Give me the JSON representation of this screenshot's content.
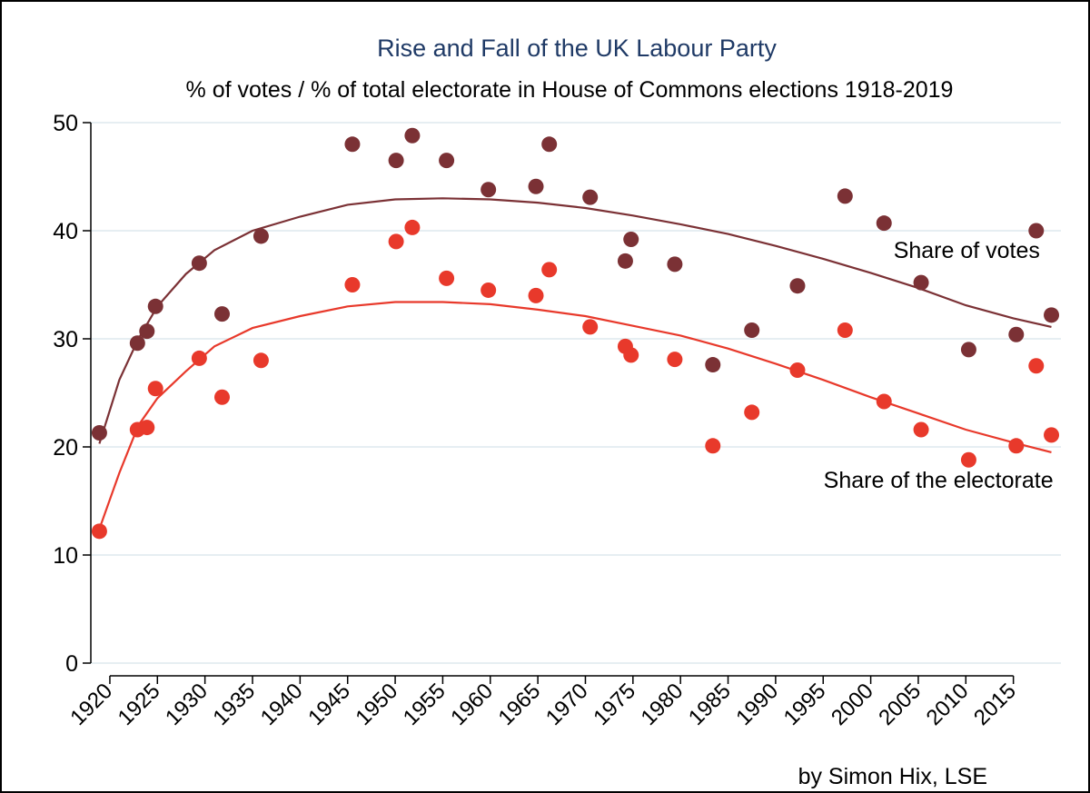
{
  "chart_data": {
    "type": "scatter",
    "title": "Rise and Fall of the UK Labour Party",
    "subtitle": "% of votes / % of total electorate in House of Commons elections 1918-2019",
    "credit": "by Simon Hix, LSE",
    "xlabel": "",
    "ylabel": "",
    "xlim": [
      1918,
      2020
    ],
    "ylim": [
      0,
      50
    ],
    "x_ticks": [
      1920,
      1925,
      1930,
      1935,
      1940,
      1945,
      1950,
      1955,
      1960,
      1965,
      1970,
      1975,
      1980,
      1985,
      1990,
      1995,
      2000,
      2005,
      2010,
      2015
    ],
    "y_ticks": [
      0,
      10,
      20,
      30,
      40,
      50
    ],
    "grid": true,
    "series": [
      {
        "name": "Share of votes",
        "color": "#7b3135",
        "points": [
          {
            "x": 1918.9,
            "y": 21.3
          },
          {
            "x": 1922.9,
            "y": 29.6
          },
          {
            "x": 1923.9,
            "y": 30.7
          },
          {
            "x": 1924.8,
            "y": 33.0
          },
          {
            "x": 1929.4,
            "y": 37.0
          },
          {
            "x": 1931.8,
            "y": 32.3
          },
          {
            "x": 1935.9,
            "y": 39.5
          },
          {
            "x": 1945.5,
            "y": 48.0
          },
          {
            "x": 1950.1,
            "y": 46.5
          },
          {
            "x": 1951.8,
            "y": 48.8
          },
          {
            "x": 1955.4,
            "y": 46.5
          },
          {
            "x": 1959.8,
            "y": 43.8
          },
          {
            "x": 1964.8,
            "y": 44.1
          },
          {
            "x": 1966.2,
            "y": 48.0
          },
          {
            "x": 1970.5,
            "y": 43.1
          },
          {
            "x": 1974.2,
            "y": 37.2
          },
          {
            "x": 1974.8,
            "y": 39.2
          },
          {
            "x": 1979.4,
            "y": 36.9
          },
          {
            "x": 1983.4,
            "y": 27.6
          },
          {
            "x": 1987.5,
            "y": 30.8
          },
          {
            "x": 1992.3,
            "y": 34.9
          },
          {
            "x": 1997.3,
            "y": 43.2
          },
          {
            "x": 2001.4,
            "y": 40.7
          },
          {
            "x": 2005.3,
            "y": 35.2
          },
          {
            "x": 2010.3,
            "y": 29.0
          },
          {
            "x": 2015.3,
            "y": 30.4
          },
          {
            "x": 2017.4,
            "y": 40.0
          },
          {
            "x": 2019.0,
            "y": 32.2
          }
        ],
        "trend": [
          {
            "x": 1918.9,
            "y": 20.3
          },
          {
            "x": 1921,
            "y": 26.2
          },
          {
            "x": 1923,
            "y": 30.0
          },
          {
            "x": 1925,
            "y": 33.0
          },
          {
            "x": 1928,
            "y": 36.0
          },
          {
            "x": 1931,
            "y": 38.2
          },
          {
            "x": 1935,
            "y": 40.0
          },
          {
            "x": 1940,
            "y": 41.3
          },
          {
            "x": 1945,
            "y": 42.4
          },
          {
            "x": 1950,
            "y": 42.9
          },
          {
            "x": 1955,
            "y": 43.0
          },
          {
            "x": 1960,
            "y": 42.9
          },
          {
            "x": 1965,
            "y": 42.6
          },
          {
            "x": 1970,
            "y": 42.1
          },
          {
            "x": 1975,
            "y": 41.4
          },
          {
            "x": 1980,
            "y": 40.6
          },
          {
            "x": 1985,
            "y": 39.7
          },
          {
            "x": 1990,
            "y": 38.6
          },
          {
            "x": 1995,
            "y": 37.4
          },
          {
            "x": 2000,
            "y": 36.1
          },
          {
            "x": 2005,
            "y": 34.7
          },
          {
            "x": 2010,
            "y": 33.1
          },
          {
            "x": 2015,
            "y": 31.9
          },
          {
            "x": 2019,
            "y": 31.1
          }
        ],
        "label": {
          "text": "Share of votes",
          "anchor_x": 2002.4,
          "anchor_y": 37.5
        }
      },
      {
        "name": "Share of the electorate",
        "color": "#e8392b",
        "points": [
          {
            "x": 1918.9,
            "y": 12.2
          },
          {
            "x": 1922.9,
            "y": 21.6
          },
          {
            "x": 1923.9,
            "y": 21.8
          },
          {
            "x": 1924.8,
            "y": 25.4
          },
          {
            "x": 1929.4,
            "y": 28.2
          },
          {
            "x": 1931.8,
            "y": 24.6
          },
          {
            "x": 1935.9,
            "y": 28.0
          },
          {
            "x": 1945.5,
            "y": 35.0
          },
          {
            "x": 1950.1,
            "y": 39.0
          },
          {
            "x": 1951.8,
            "y": 40.3
          },
          {
            "x": 1955.4,
            "y": 35.6
          },
          {
            "x": 1959.8,
            "y": 34.5
          },
          {
            "x": 1964.8,
            "y": 34.0
          },
          {
            "x": 1966.2,
            "y": 36.4
          },
          {
            "x": 1970.5,
            "y": 31.1
          },
          {
            "x": 1974.2,
            "y": 29.3
          },
          {
            "x": 1974.8,
            "y": 28.5
          },
          {
            "x": 1979.4,
            "y": 28.1
          },
          {
            "x": 1983.4,
            "y": 20.1
          },
          {
            "x": 1987.5,
            "y": 23.2
          },
          {
            "x": 1992.3,
            "y": 27.1
          },
          {
            "x": 1997.3,
            "y": 30.8
          },
          {
            "x": 2001.4,
            "y": 24.2
          },
          {
            "x": 2005.3,
            "y": 21.6
          },
          {
            "x": 2010.3,
            "y": 18.8
          },
          {
            "x": 2015.3,
            "y": 20.1
          },
          {
            "x": 2017.4,
            "y": 27.5
          },
          {
            "x": 2019.0,
            "y": 21.1
          }
        ],
        "trend": [
          {
            "x": 1918.9,
            "y": 12.4
          },
          {
            "x": 1921,
            "y": 17.6
          },
          {
            "x": 1923,
            "y": 22.0
          },
          {
            "x": 1925,
            "y": 24.5
          },
          {
            "x": 1928,
            "y": 27.0
          },
          {
            "x": 1931,
            "y": 29.3
          },
          {
            "x": 1935,
            "y": 31.0
          },
          {
            "x": 1940,
            "y": 32.1
          },
          {
            "x": 1945,
            "y": 33.0
          },
          {
            "x": 1950,
            "y": 33.4
          },
          {
            "x": 1955,
            "y": 33.4
          },
          {
            "x": 1960,
            "y": 33.2
          },
          {
            "x": 1965,
            "y": 32.7
          },
          {
            "x": 1970,
            "y": 32.1
          },
          {
            "x": 1975,
            "y": 31.2
          },
          {
            "x": 1980,
            "y": 30.3
          },
          {
            "x": 1985,
            "y": 29.1
          },
          {
            "x": 1990,
            "y": 27.7
          },
          {
            "x": 1995,
            "y": 26.2
          },
          {
            "x": 2000,
            "y": 24.6
          },
          {
            "x": 2005,
            "y": 23.1
          },
          {
            "x": 2010,
            "y": 21.6
          },
          {
            "x": 2015,
            "y": 20.4
          },
          {
            "x": 2019,
            "y": 19.5
          }
        ],
        "label": {
          "text": "Share of the electorate",
          "anchor_x": 2019.2,
          "anchor_y": 16.2
        }
      }
    ]
  },
  "colors": {
    "title": "#1f3a66",
    "text": "#000000",
    "grid": "#e6eef2",
    "axis": "#000000"
  }
}
